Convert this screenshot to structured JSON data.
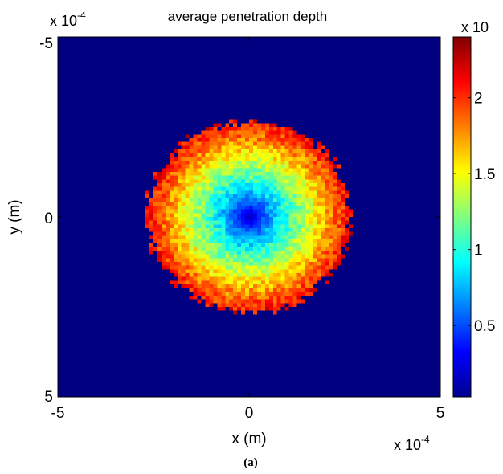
{
  "chart_data": {
    "type": "heatmap",
    "title": "average penetration depth",
    "xlabel": "x (m)",
    "ylabel": "y (m)",
    "x_multiplier": "x 10",
    "x_multiplier_exp": "-4",
    "y_multiplier": "x 10",
    "y_multiplier_exp": "-4",
    "colorbar_multiplier": "x 10",
    "xlim": [
      -5,
      5
    ],
    "ylim": [
      -5,
      5
    ],
    "y_reversed": true,
    "x_ticks": [
      "-5",
      "0",
      "5"
    ],
    "y_ticks": [
      "-5",
      "0",
      "5"
    ],
    "colorbar_ticks": [
      "0.5",
      "1",
      "1.5",
      "2"
    ],
    "colorbar_tick_values": [
      0.5,
      1,
      1.5,
      2
    ],
    "colorbar_range": [
      0.03,
      2.4
    ],
    "colormap": "jet",
    "background_value": 0.03,
    "spot": {
      "center": [
        0,
        0
      ],
      "radius": 2.65,
      "center_value": 0.1,
      "edge_value": 2.1
    },
    "grid": false
  },
  "caption": "(a)"
}
